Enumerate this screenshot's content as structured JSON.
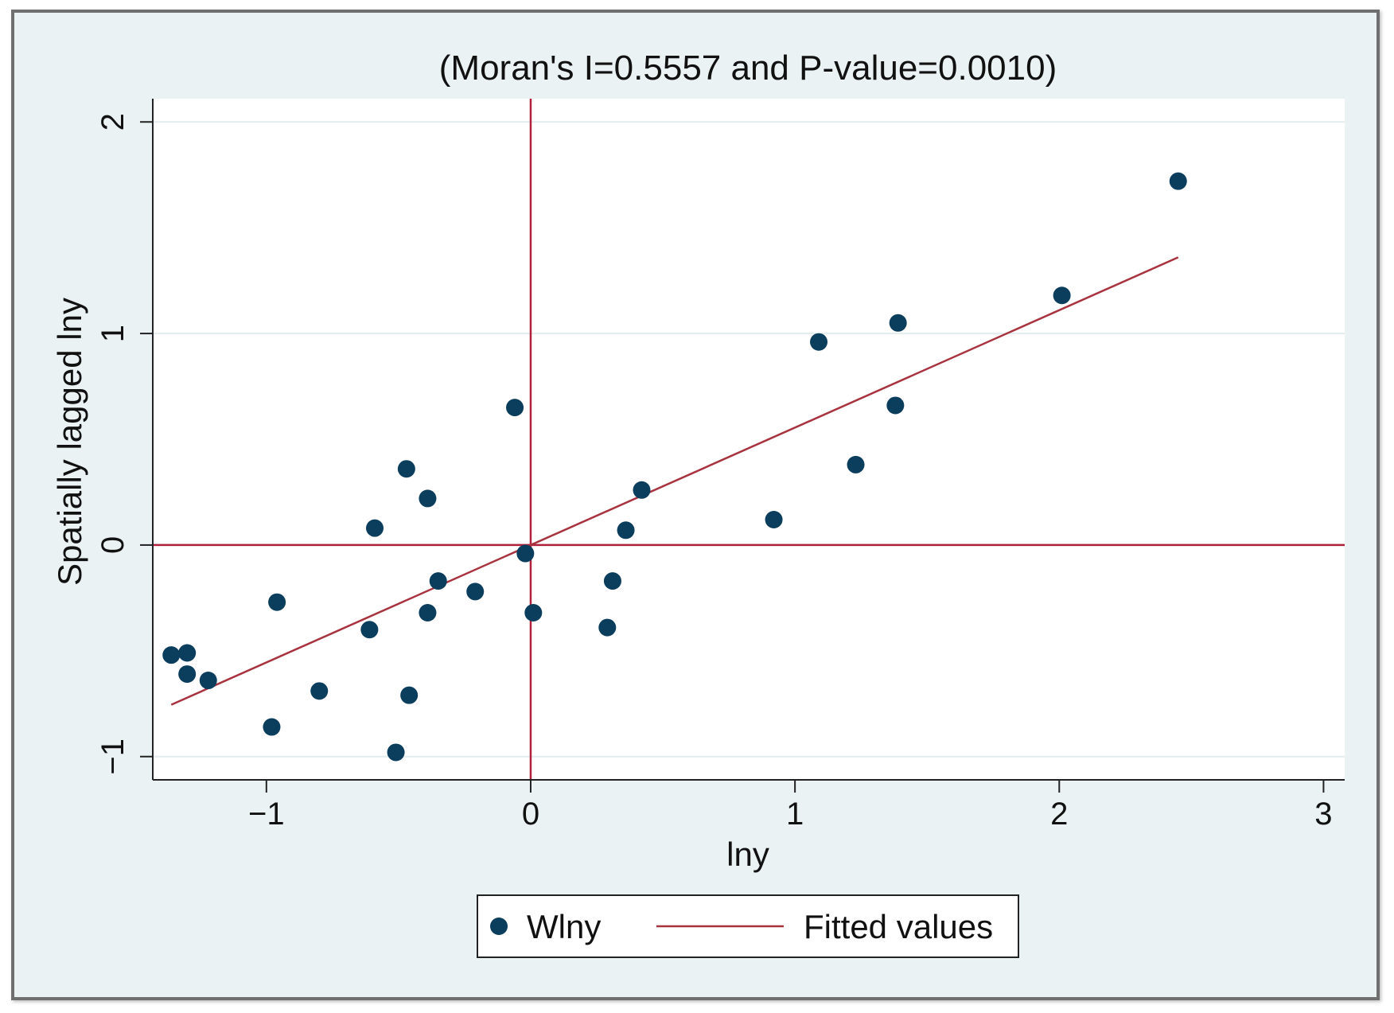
{
  "chart_data": {
    "type": "scatter",
    "title": "(Moran's I=0.5557 and P-value=0.0010)",
    "xlabel": "lny",
    "ylabel": "Spatially lagged lny",
    "xlim": [
      -1.43,
      3.08
    ],
    "ylim": [
      -1.11,
      2.11
    ],
    "xticks": [
      -1,
      0,
      1,
      2,
      3
    ],
    "yticks": [
      -1,
      0,
      1,
      2
    ],
    "xtick_labels": [
      "−1",
      "0",
      "1",
      "2",
      "3"
    ],
    "ytick_labels": [
      "−1",
      "0",
      "1",
      "2"
    ],
    "grid": true,
    "reference_lines": {
      "x": 0,
      "y": 0
    },
    "series": [
      {
        "name": "Wlny",
        "kind": "scatter",
        "x": [
          -1.36,
          -1.3,
          -1.3,
          -1.22,
          -0.98,
          -0.96,
          -0.8,
          -0.61,
          -0.59,
          -0.51,
          -0.47,
          -0.46,
          -0.39,
          -0.39,
          -0.35,
          -0.21,
          -0.06,
          -0.02,
          0.01,
          0.29,
          0.31,
          0.36,
          0.42,
          0.92,
          1.09,
          1.23,
          1.38,
          1.39,
          2.01,
          2.45
        ],
        "y": [
          -0.52,
          -0.51,
          -0.61,
          -0.64,
          -0.86,
          -0.27,
          -0.69,
          -0.4,
          0.08,
          -0.98,
          0.36,
          -0.71,
          0.22,
          -0.32,
          -0.17,
          -0.22,
          0.65,
          -0.04,
          -0.32,
          -0.39,
          -0.17,
          0.07,
          0.26,
          0.12,
          0.96,
          0.38,
          0.66,
          1.05,
          1.18,
          1.72
        ]
      },
      {
        "name": "Fitted values",
        "kind": "line",
        "x": [
          -1.36,
          2.45
        ],
        "y": [
          -0.755,
          1.36
        ]
      }
    ],
    "legend": {
      "position": "bottom",
      "entries": [
        "Wlny",
        "Fitted values"
      ]
    },
    "colors": {
      "points": "#0b3d5c",
      "fit_line": "#a8323e",
      "ref_lines": "#b0203a",
      "plot_bg": "#ffffff",
      "frame_bg": "#eaf2f3",
      "grid": "#e3ecee"
    }
  }
}
